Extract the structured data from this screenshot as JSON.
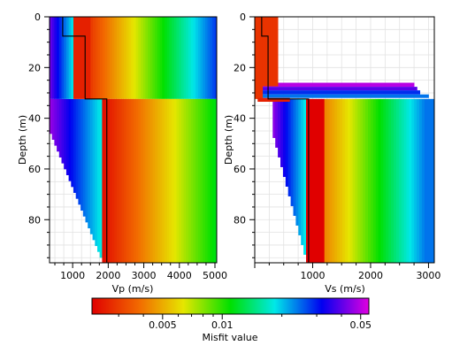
{
  "chart_data": [
    {
      "type": "heatmap",
      "panel": "left",
      "xlabel": "Vp (m/s)",
      "ylabel": "Depth (m)",
      "xlim": [
        350,
        5050
      ],
      "ylim": [
        0,
        97
      ],
      "y_inverted": true,
      "x_ticks": [
        1000,
        2000,
        3000,
        4000,
        5000
      ],
      "y_ticks": [
        0,
        20,
        40,
        60,
        80
      ],
      "grid": true,
      "best_model": {
        "layers": [
          {
            "top": 0,
            "bottom": 7.6,
            "vp": 720
          },
          {
            "top": 7.6,
            "bottom": 32.4,
            "vp": 1350
          },
          {
            "top": 32.4,
            "bottom": 97,
            "vp": 1960
          }
        ]
      },
      "layer_boundary_depth": 32.4
    },
    {
      "type": "heatmap",
      "panel": "right",
      "xlabel": "Vs (m/s)",
      "ylabel": "Depth (m)",
      "xlim": [
        0,
        3100
      ],
      "ylim": [
        0,
        97
      ],
      "y_inverted": true,
      "x_ticks": [
        1000,
        2000,
        3000
      ],
      "y_ticks": [
        0,
        20,
        40,
        60,
        80
      ],
      "grid": true,
      "best_model": {
        "layers": [
          {
            "top": 0,
            "bottom": 7.6,
            "vs": 120
          },
          {
            "top": 7.6,
            "bottom": 32.4,
            "vs": 230
          },
          {
            "top": 32.4,
            "bottom": 97,
            "vs": 930
          }
        ]
      },
      "layer_boundary_depth": 32.4
    }
  ],
  "colorbar": {
    "label": "Misfit value",
    "scale": "log",
    "range": [
      0.0022,
      0.055
    ],
    "tick_values": [
      0.005,
      0.01,
      0.05
    ],
    "tick_labels": [
      "0.005",
      "0.01",
      "0.05"
    ],
    "colors": [
      "#e00000",
      "#f26a00",
      "#e6e600",
      "#00e000",
      "#00e8e8",
      "#0000f0",
      "#e000e0"
    ]
  }
}
